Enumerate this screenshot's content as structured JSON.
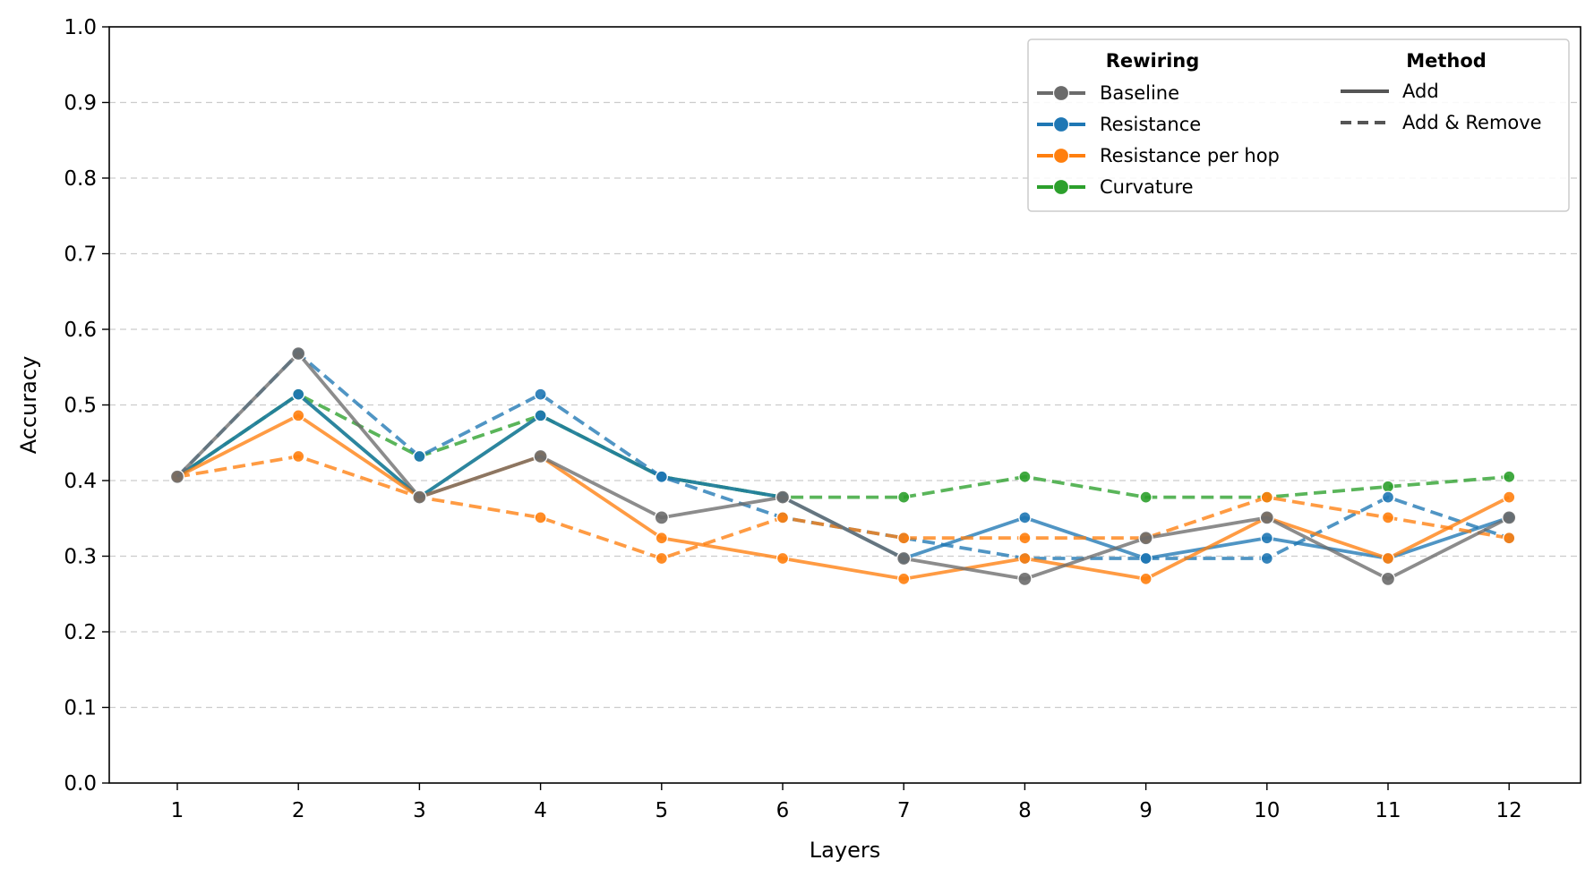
{
  "chart_data": {
    "type": "line",
    "xlabel": "Layers",
    "ylabel": "Accuracy",
    "x": [
      1,
      2,
      3,
      4,
      5,
      6,
      7,
      8,
      9,
      10,
      11,
      12
    ],
    "xticks": [
      "1",
      "2",
      "3",
      "4",
      "5",
      "6",
      "7",
      "8",
      "9",
      "10",
      "11",
      "12"
    ],
    "ylim": [
      0.0,
      1.0
    ],
    "yticks": [
      "0.0",
      "0.1",
      "0.2",
      "0.3",
      "0.4",
      "0.5",
      "0.6",
      "0.7",
      "0.8",
      "0.9",
      "1.0"
    ],
    "grid": "horizontal dashed",
    "legend": {
      "placement": "top-right",
      "rewiring_title": "Rewiring",
      "method_title": "Method",
      "rewiring": [
        {
          "name": "Baseline",
          "color": "#6b6b6b"
        },
        {
          "name": "Resistance",
          "color": "#1f77b4"
        },
        {
          "name": "Resistance per hop",
          "color": "#ff7f0e"
        },
        {
          "name": "Curvature",
          "color": "#2ca02c"
        }
      ],
      "method": [
        {
          "name": "Add",
          "style": "solid"
        },
        {
          "name": "Add & Remove",
          "style": "dashed"
        }
      ]
    },
    "series": [
      {
        "rewiring": "Curvature",
        "method": "Add & Remove",
        "color": "#2ca02c",
        "values": [
          0.405,
          0.514,
          0.432,
          0.486,
          0.405,
          0.378,
          0.378,
          0.405,
          0.378,
          0.378,
          0.392,
          0.405
        ]
      },
      {
        "rewiring": "Curvature",
        "method": "Add",
        "color": "#2ca02c",
        "values": [
          0.405,
          0.514,
          0.378,
          0.486,
          0.405,
          0.378,
          null,
          null,
          null,
          null,
          null,
          null
        ]
      },
      {
        "rewiring": "Resistance",
        "method": "Add & Remove",
        "color": "#1f77b4",
        "values": [
          0.405,
          0.568,
          0.432,
          0.514,
          0.405,
          0.351,
          0.324,
          0.297,
          0.297,
          0.297,
          0.378,
          0.324
        ]
      },
      {
        "rewiring": "Resistance",
        "method": "Add",
        "color": "#1f77b4",
        "values": [
          0.405,
          0.514,
          0.378,
          0.486,
          0.405,
          0.378,
          0.297,
          0.351,
          0.297,
          0.324,
          0.297,
          0.351
        ]
      },
      {
        "rewiring": "Resistance per hop",
        "method": "Add & Remove",
        "color": "#ff7f0e",
        "values": [
          0.405,
          0.432,
          0.378,
          0.351,
          0.297,
          0.351,
          0.324,
          0.324,
          0.324,
          0.378,
          0.351,
          0.324
        ]
      },
      {
        "rewiring": "Resistance per hop",
        "method": "Add",
        "color": "#ff7f0e",
        "values": [
          0.405,
          0.486,
          0.378,
          0.432,
          0.324,
          0.297,
          0.27,
          0.297,
          0.27,
          0.351,
          0.297,
          0.378
        ]
      },
      {
        "rewiring": "Baseline",
        "method": "Add",
        "color": "#6b6b6b",
        "values": [
          0.405,
          0.568,
          0.378,
          0.432,
          0.351,
          0.378,
          0.297,
          0.27,
          0.324,
          0.351,
          0.27,
          0.351
        ]
      }
    ]
  }
}
